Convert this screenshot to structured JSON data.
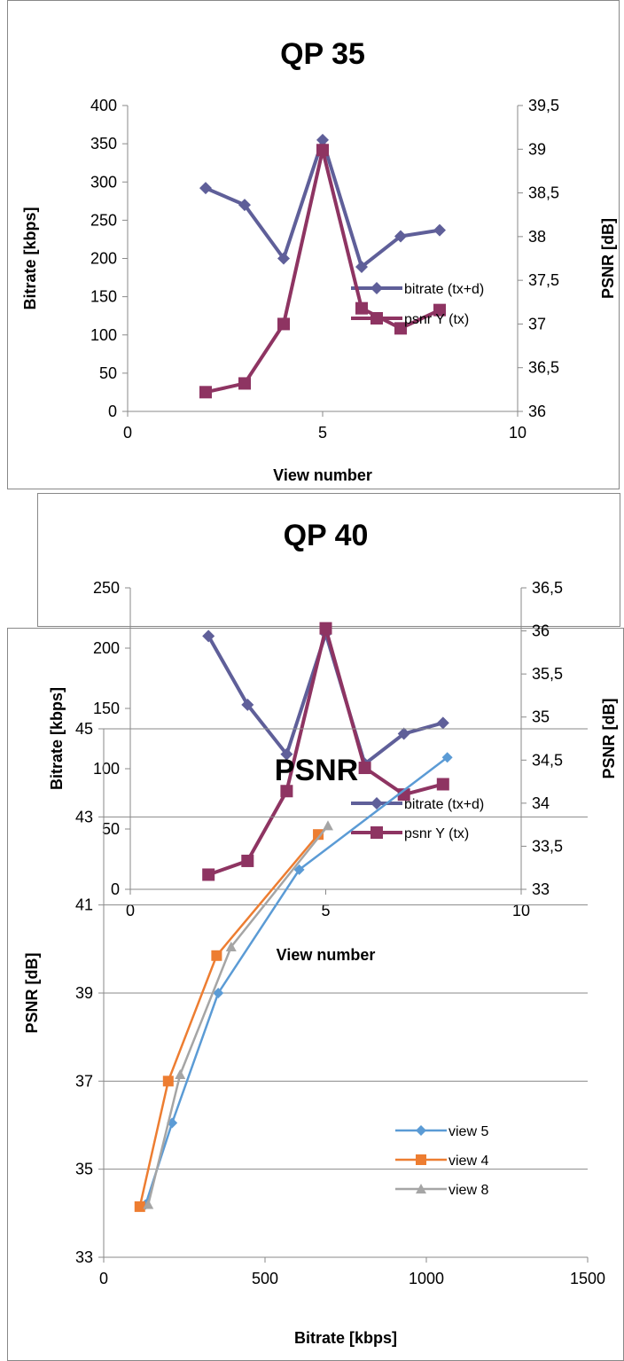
{
  "chart_data": [
    {
      "type": "line",
      "title": "QP 35",
      "xlabel": "View number",
      "ylabel": "Bitrate [kbps]",
      "y2label": "PSNR [dB]",
      "xlim": [
        0,
        10
      ],
      "ylim": [
        0,
        400
      ],
      "y2lim": [
        36,
        39.5
      ],
      "xticks": [
        "0",
        "5",
        "10"
      ],
      "yticks": [
        "0",
        "50",
        "100",
        "150",
        "200",
        "250",
        "300",
        "350",
        "400"
      ],
      "y2ticks": [
        "36",
        "36,5",
        "37",
        "37,5",
        "38",
        "38,5",
        "39",
        "39,5"
      ],
      "legend_position": "bottom-right",
      "series": [
        {
          "name": "bitrate (tx+d)",
          "axis": "left",
          "marker": "diamond",
          "color": "#5F5F99",
          "x": [
            2,
            3,
            4,
            5,
            6,
            7,
            8
          ],
          "values": [
            292,
            270,
            200,
            355,
            189,
            229,
            237
          ]
        },
        {
          "name": "psnr Y (tx)",
          "axis": "right",
          "marker": "square",
          "color": "#8E3462",
          "x": [
            2,
            3,
            4,
            5,
            6,
            7,
            8
          ],
          "values": [
            36.22,
            36.32,
            37.0,
            38.99,
            37.18,
            36.95,
            37.16
          ]
        }
      ]
    },
    {
      "type": "line",
      "title": "QP 40",
      "xlabel": "View number",
      "ylabel": "Bitrate [kbps]",
      "y2label": "PSNR [dB]",
      "xlim": [
        0,
        10
      ],
      "ylim": [
        0,
        250
      ],
      "y2lim": [
        33,
        36.5
      ],
      "xticks": [
        "0",
        "5",
        "10"
      ],
      "yticks": [
        "0",
        "50",
        "100",
        "150",
        "200",
        "250"
      ],
      "y2ticks": [
        "33",
        "33,5",
        "34",
        "34,5",
        "35",
        "35,5",
        "36",
        "36,5"
      ],
      "legend_position": "bottom-right",
      "series": [
        {
          "name": "bitrate (tx+d)",
          "axis": "left",
          "marker": "diamond",
          "color": "#5F5F99",
          "x": [
            2,
            3,
            4,
            5,
            6,
            7,
            8
          ],
          "values": [
            210,
            153,
            112,
            212,
            104,
            129,
            138
          ]
        },
        {
          "name": "psnr Y (tx)",
          "axis": "right",
          "marker": "square",
          "color": "#8E3462",
          "x": [
            2,
            3,
            4,
            5,
            6,
            7,
            8
          ],
          "values": [
            33.17,
            33.33,
            34.14,
            36.03,
            34.41,
            34.1,
            34.22
          ]
        }
      ]
    },
    {
      "type": "line",
      "title": "PSNR",
      "xlabel": "Bitrate [kbps]",
      "ylabel": "PSNR [dB]",
      "xlim": [
        0,
        1500
      ],
      "ylim": [
        33,
        45
      ],
      "xticks": [
        "0",
        "500",
        "1000",
        "1500"
      ],
      "yticks": [
        "33",
        "35",
        "37",
        "39",
        "41",
        "43",
        "45"
      ],
      "grid": true,
      "legend_position": "bottom-right",
      "series": [
        {
          "name": "view 5",
          "marker": "diamond",
          "color": "#5B9BD5",
          "x": [
            130,
            212,
            355,
            606,
            1065
          ],
          "values": [
            34.2,
            36.05,
            39.0,
            41.8,
            44.35
          ]
        },
        {
          "name": "view 4",
          "marker": "square",
          "color": "#ED7D31",
          "x": [
            112,
            200,
            350,
            665
          ],
          "values": [
            34.15,
            37.0,
            39.85,
            42.6
          ]
        },
        {
          "name": "view 8",
          "marker": "triangle",
          "color": "#A5A5A5",
          "x": [
            138,
            237,
            395,
            695
          ],
          "values": [
            34.2,
            37.15,
            40.05,
            42.8
          ]
        }
      ]
    }
  ]
}
